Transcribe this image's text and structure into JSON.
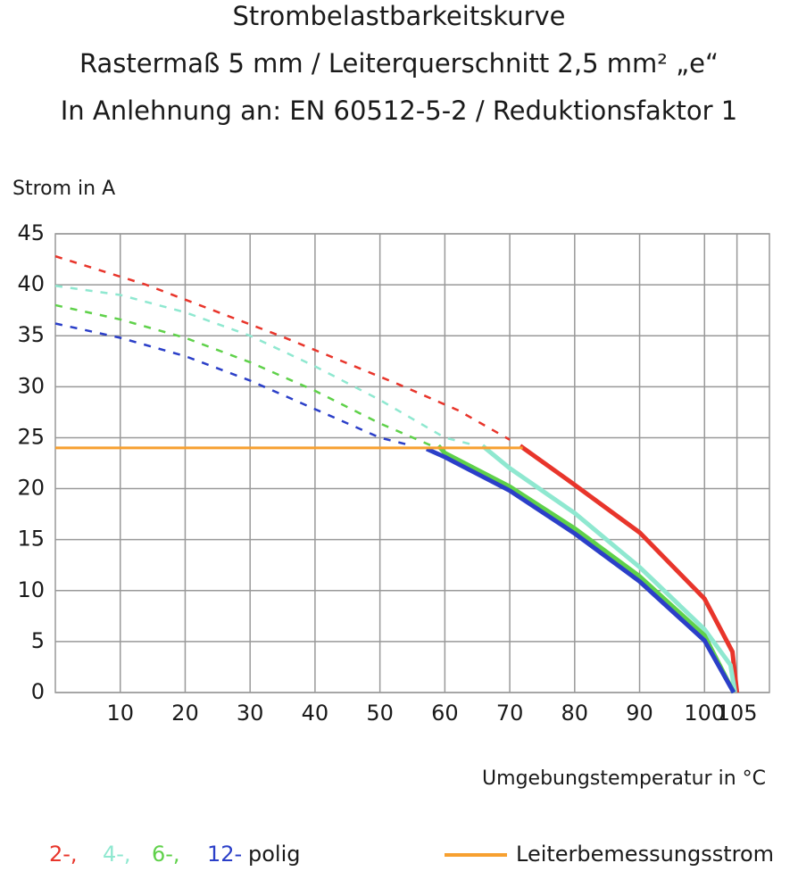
{
  "chart_data": {
    "type": "line",
    "title": [
      "Strombelastbarkeitskurve",
      "Rastermaß 5 mm / Leiterquerschnitt 2,5 mm² „e“",
      "In Anlehnung an: EN 60512-5-2 / Reduktionsfaktor 1"
    ],
    "y_label": "Strom in A",
    "x_label": "Umgebungstemperatur in °C",
    "xlim": [
      0,
      110
    ],
    "xticks": [
      10,
      20,
      30,
      40,
      50,
      60,
      70,
      80,
      90,
      100,
      105
    ],
    "ylim": [
      0,
      45
    ],
    "yticks": [
      0,
      5,
      10,
      15,
      20,
      25,
      30,
      35,
      40,
      45
    ],
    "grid": true,
    "series": [
      {
        "name": "2-,",
        "color": "#e8352b",
        "dashed_x": [
          0,
          14,
          35,
          53,
          62,
          70
        ],
        "dashed_values": [
          42.8,
          40.0,
          34.9,
          30.2,
          27.7,
          24.8
        ],
        "x": [
          71.6,
          79.5,
          90,
          100,
          104.3,
          105
        ],
        "values": [
          24.2,
          20.6,
          15.7,
          9.2,
          4.0,
          0
        ]
      },
      {
        "name": "4-,",
        "color": "#8fe8d0",
        "dashed_x": [
          0,
          10,
          20,
          30,
          40,
          50,
          60,
          65
        ],
        "dashed_values": [
          39.9,
          39.0,
          37.3,
          35.0,
          32.0,
          28.7,
          25.0,
          24.2
        ],
        "x": [
          65.8,
          70,
          80,
          90,
          100,
          104,
          104.7
        ],
        "values": [
          24.2,
          22.0,
          17.6,
          12.3,
          6.2,
          2.7,
          0
        ]
      },
      {
        "name": "6-,",
        "color": "#5fd14a",
        "dashed_x": [
          0,
          10,
          20,
          30,
          40,
          50,
          58
        ],
        "dashed_values": [
          38.0,
          36.6,
          34.8,
          32.4,
          29.6,
          26.4,
          24.2
        ],
        "x": [
          59,
          60,
          70,
          80,
          90,
          100,
          104.5
        ],
        "values": [
          24.2,
          23.5,
          20.2,
          16.1,
          11.4,
          5.6,
          0
        ]
      },
      {
        "name": "12-",
        "color": "#2b3fc8",
        "dashed_x": [
          0,
          10,
          20,
          30,
          40,
          50,
          55
        ],
        "dashed_values": [
          36.2,
          34.8,
          33.0,
          30.6,
          27.8,
          25.0,
          24.2
        ],
        "x": [
          57.2,
          60,
          70,
          80,
          90,
          100,
          104.5
        ],
        "values": [
          23.9,
          23.1,
          19.8,
          15.6,
          10.9,
          5.1,
          0
        ]
      },
      {
        "name": "Leiterbemessungsstrom",
        "color": "#f7a030",
        "x": [
          0,
          72
        ],
        "values": [
          24,
          24
        ]
      }
    ],
    "legend_suffix": "polig"
  }
}
